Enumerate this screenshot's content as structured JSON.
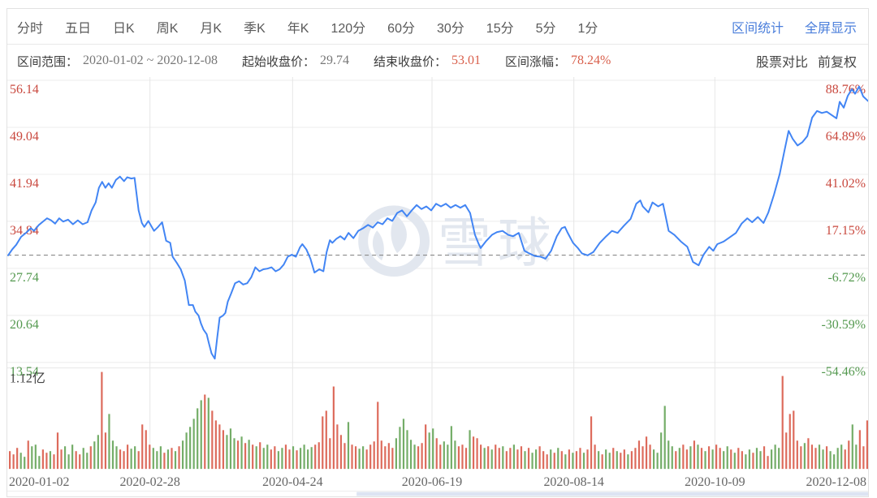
{
  "toolbar": {
    "tabs": [
      "分时",
      "五日",
      "日K",
      "周K",
      "月K",
      "季K",
      "年K",
      "120分",
      "60分",
      "30分",
      "15分",
      "5分",
      "1分"
    ],
    "links": [
      "区间统计",
      "全屏显示"
    ]
  },
  "stats": {
    "range_label": "区间范围：",
    "range_value": "2020-01-02 ~ 2020-12-08",
    "start_label": "起始收盘价：",
    "start_value": "29.74",
    "end_label": "结束收盘价：",
    "end_value": "53.01",
    "change_label": "区间涨幅：",
    "change_value": "78.24%",
    "compare_label": "股票对比",
    "adjust_label": "前复权"
  },
  "watermark": {
    "text": "雪球"
  },
  "colors": {
    "up": "#c9483e",
    "down": "#54994f",
    "line": "#4285f4",
    "vol_up": "#dd6b5c",
    "vol_down": "#74ad68",
    "grid": "#ececec",
    "vgrid": "#e6e6e6",
    "baseline": "#8a8a8a",
    "axis_date": "#666666",
    "watermark": "#e2e7ef",
    "link": "#4a7edb",
    "scroll_thumb": "#dde4f2"
  },
  "chart_data": {
    "type": "line",
    "title": "",
    "price_ticks": [
      56.14,
      49.04,
      41.94,
      34.84,
      27.74,
      20.64,
      13.54
    ],
    "pct_ticks": [
      "88.76%",
      "64.89%",
      "41.02%",
      "17.15%",
      "-6.72%",
      "-30.59%",
      "-54.46%"
    ],
    "ylim": [
      13.54,
      56.14
    ],
    "baseline_price": 29.74,
    "start_close": 29.74,
    "end_close": 53.01,
    "change_pct": "78.24%",
    "x_ticks": [
      "2020-01-02",
      "2020-02-28",
      "2020-04-24",
      "2020-06-19",
      "2020-08-14",
      "2020-10-09",
      "2020-12-08"
    ],
    "grid": true,
    "price_series": [
      [
        10,
        29.7
      ],
      [
        15,
        30.6
      ],
      [
        20,
        31.3
      ],
      [
        26,
        32.5
      ],
      [
        32,
        33.1
      ],
      [
        38,
        33.8
      ],
      [
        42,
        33.4
      ],
      [
        48,
        34.3
      ],
      [
        54,
        34.9
      ],
      [
        58,
        35.3
      ],
      [
        63,
        35.0
      ],
      [
        68,
        34.5
      ],
      [
        73,
        35.3
      ],
      [
        78,
        34.8
      ],
      [
        84,
        35.1
      ],
      [
        90,
        34.4
      ],
      [
        96,
        35.0
      ],
      [
        102,
        34.4
      ],
      [
        108,
        34.7
      ],
      [
        113,
        36.5
      ],
      [
        118,
        37.7
      ],
      [
        122,
        39.9
      ],
      [
        126,
        40.8
      ],
      [
        130,
        39.9
      ],
      [
        134,
        40.6
      ],
      [
        138,
        39.9
      ],
      [
        143,
        41.1
      ],
      [
        148,
        41.6
      ],
      [
        153,
        40.9
      ],
      [
        157,
        41.5
      ],
      [
        162,
        41.3
      ],
      [
        166,
        41.4
      ],
      [
        171,
        36.5
      ],
      [
        175,
        34.6
      ],
      [
        178,
        34.0
      ],
      [
        183,
        34.9
      ],
      [
        190,
        33.4
      ],
      [
        195,
        34.0
      ],
      [
        200,
        34.7
      ],
      [
        205,
        31.9
      ],
      [
        210,
        31.6
      ],
      [
        213,
        29.5
      ],
      [
        218,
        28.6
      ],
      [
        223,
        27.6
      ],
      [
        228,
        25.9
      ],
      [
        233,
        22.2
      ],
      [
        238,
        22.2
      ],
      [
        241,
        21.2
      ],
      [
        245,
        20.6
      ],
      [
        248,
        19.4
      ],
      [
        251,
        18.5
      ],
      [
        255,
        17.8
      ],
      [
        258,
        16.3
      ],
      [
        261,
        14.9
      ],
      [
        265,
        14.1
      ],
      [
        268,
        17.3
      ],
      [
        271,
        20.3
      ],
      [
        275,
        20.6
      ],
      [
        278,
        21.0
      ],
      [
        281,
        22.7
      ],
      [
        285,
        23.9
      ],
      [
        290,
        25.5
      ],
      [
        295,
        25.8
      ],
      [
        300,
        25.3
      ],
      [
        305,
        25.5
      ],
      [
        310,
        26.4
      ],
      [
        315,
        27.9
      ],
      [
        320,
        27.3
      ],
      [
        325,
        27.6
      ],
      [
        330,
        27.7
      ],
      [
        335,
        27.9
      ],
      [
        340,
        27.3
      ],
      [
        345,
        27.6
      ],
      [
        350,
        28.3
      ],
      [
        355,
        29.5
      ],
      [
        360,
        29.8
      ],
      [
        365,
        29.5
      ],
      [
        370,
        30.9
      ],
      [
        373,
        31.4
      ],
      [
        378,
        30.6
      ],
      [
        383,
        29.2
      ],
      [
        388,
        27.1
      ],
      [
        394,
        27.6
      ],
      [
        399,
        27.3
      ],
      [
        403,
        30.2
      ],
      [
        407,
        32.0
      ],
      [
        410,
        31.6
      ],
      [
        415,
        32.2
      ],
      [
        420,
        32.6
      ],
      [
        425,
        32.1
      ],
      [
        430,
        33.1
      ],
      [
        436,
        32.3
      ],
      [
        442,
        33.4
      ],
      [
        448,
        33.8
      ],
      [
        454,
        34.3
      ],
      [
        460,
        33.9
      ],
      [
        466,
        34.7
      ],
      [
        472,
        34.4
      ],
      [
        478,
        35.3
      ],
      [
        484,
        34.9
      ],
      [
        490,
        36.1
      ],
      [
        496,
        36.5
      ],
      [
        502,
        35.6
      ],
      [
        508,
        36.5
      ],
      [
        514,
        37.3
      ],
      [
        520,
        36.7
      ],
      [
        526,
        37.1
      ],
      [
        532,
        36.5
      ],
      [
        538,
        37.5
      ],
      [
        544,
        37.1
      ],
      [
        550,
        37.5
      ],
      [
        556,
        36.9
      ],
      [
        562,
        37.3
      ],
      [
        568,
        36.9
      ],
      [
        574,
        37.3
      ],
      [
        580,
        36.1
      ],
      [
        586,
        32.8
      ],
      [
        590,
        31.6
      ],
      [
        593,
        30.8
      ],
      [
        600,
        31.9
      ],
      [
        607,
        32.8
      ],
      [
        613,
        33.2
      ],
      [
        620,
        33.4
      ],
      [
        627,
        32.8
      ],
      [
        633,
        32.6
      ],
      [
        640,
        33.1
      ],
      [
        647,
        30.4
      ],
      [
        653,
        30.0
      ],
      [
        660,
        29.6
      ],
      [
        667,
        29.5
      ],
      [
        673,
        29.2
      ],
      [
        680,
        30.4
      ],
      [
        687,
        32.6
      ],
      [
        693,
        33.8
      ],
      [
        697,
        34.0
      ],
      [
        700,
        33.2
      ],
      [
        707,
        31.6
      ],
      [
        713,
        30.8
      ],
      [
        718,
        30.0
      ],
      [
        725,
        29.7
      ],
      [
        732,
        30.2
      ],
      [
        740,
        31.6
      ],
      [
        748,
        32.6
      ],
      [
        755,
        33.4
      ],
      [
        762,
        33.1
      ],
      [
        770,
        34.2
      ],
      [
        778,
        35.2
      ],
      [
        785,
        37.5
      ],
      [
        790,
        38.0
      ],
      [
        793,
        37.1
      ],
      [
        800,
        36.2
      ],
      [
        805,
        37.7
      ],
      [
        812,
        37.1
      ],
      [
        818,
        37.5
      ],
      [
        825,
        33.4
      ],
      [
        832,
        32.8
      ],
      [
        840,
        31.8
      ],
      [
        848,
        31.0
      ],
      [
        855,
        28.7
      ],
      [
        862,
        28.2
      ],
      [
        868,
        29.8
      ],
      [
        875,
        31.0
      ],
      [
        880,
        30.4
      ],
      [
        885,
        31.4
      ],
      [
        893,
        31.8
      ],
      [
        900,
        32.4
      ],
      [
        908,
        33.1
      ],
      [
        915,
        34.5
      ],
      [
        922,
        35.3
      ],
      [
        928,
        34.7
      ],
      [
        935,
        35.5
      ],
      [
        942,
        34.6
      ],
      [
        948,
        36.2
      ],
      [
        955,
        38.9
      ],
      [
        962,
        42.0
      ],
      [
        968,
        45.6
      ],
      [
        973,
        48.5
      ],
      [
        978,
        47.3
      ],
      [
        984,
        46.3
      ],
      [
        990,
        46.8
      ],
      [
        996,
        47.7
      ],
      [
        1002,
        50.5
      ],
      [
        1008,
        51.5
      ],
      [
        1014,
        51.2
      ],
      [
        1020,
        51.4
      ],
      [
        1026,
        50.9
      ],
      [
        1032,
        50.4
      ],
      [
        1036,
        52.9
      ],
      [
        1041,
        52.0
      ],
      [
        1046,
        53.8
      ],
      [
        1051,
        54.8
      ],
      [
        1055,
        54.1
      ],
      [
        1060,
        55.2
      ],
      [
        1065,
        53.7
      ],
      [
        1071,
        53.0
      ]
    ],
    "volume": {
      "max_label": "1.12亿",
      "bars": "22r,18r,26r,20g,15g,35r,28g,30g,16g,24r,20r,22g,18r,45r,24r,28g,18g,30g,22r,18r,26g,20g,28r,34g,42g,120r,45r,68g,35g,28g,24r,22r,30r,25g,28g,22r,55r,48r,30r,26g,22g,28g,20r,24g,26r,22g,28r,35g,45g,52g,62g,75g,85g,92r,88g,72r,60r,55r,48r,42g,50g,38g,35r,40g,32r,36g,30r,28g,33r,26g,30g,24r,28r,22g,26g,30r,24r,28g,23r,26g,30g,24g,27g,30r,33r,65r,72r,38r,102r,55r,42r,32r,58g,30r,28r,25g,28g,24r,30r,34r,83r,35r,28r,32r,26r,38g,52g,62g,48g,36g,30g,28r,32r,55r,45g,50g,38r,30r,34g,30g,53g,35g,28r,30r,26r,48g,40r,38r,30r,26g,28r,24g,30r,26r,28g,22r,26r,30g,24r,28r,22g,26r,20g,24g,28r,22r,18r,24g,20r,26g,22r,18g,24r,20g,22r,26r,20g,24r,65r,30r,22g,18r,24g,20g,26r,22g,20r,24r,18g,22r,26r,35r,28r,40r,30r,24g,20g,45g,78g,35g,28g,22r,26g,30r,24r,28g,35r,30g,26r,22g,28r,24g,30r,26r,22g,28g,24r,20g,26r,22r,18g,24g,20r,26g,22g,28r,16r,24g,30g,26g,115r,45r,68r,72r,35r,28r,32g,38r,30r,26r,30g,24g,28r,22g,18g,26g,30g,24r,35r,55g,30g,48r,28r,60r"
    }
  }
}
